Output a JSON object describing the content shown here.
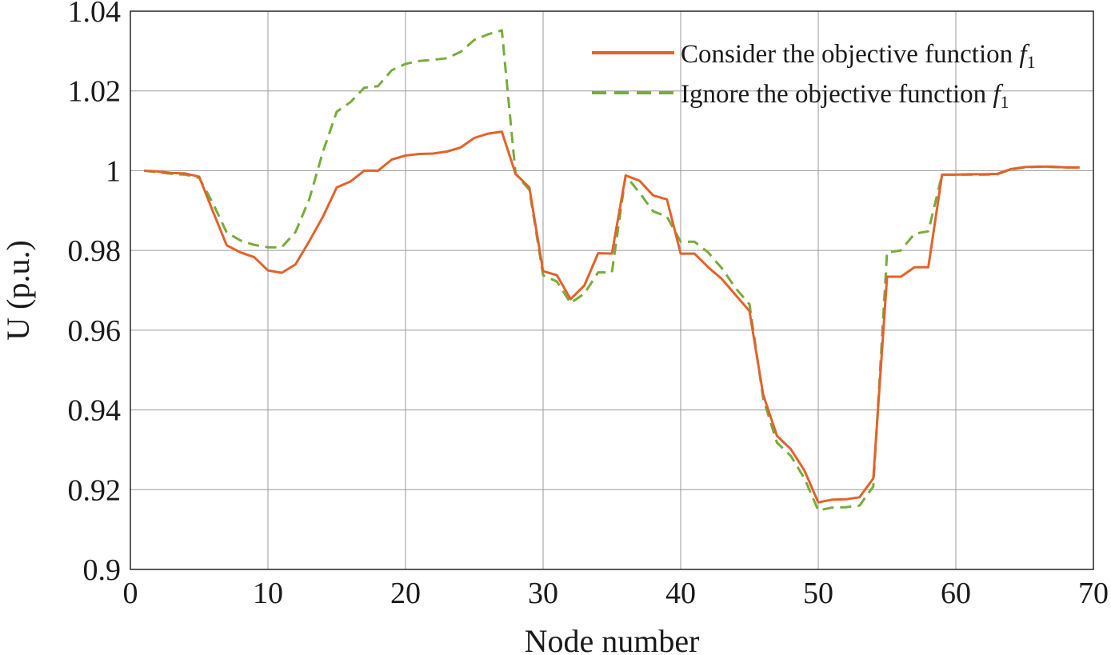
{
  "chart_data": {
    "type": "line",
    "xlabel": "Node number",
    "ylabel": "U (p.u.)",
    "xlim": [
      0,
      70
    ],
    "ylim": [
      0.9,
      1.04
    ],
    "xticks": [
      0,
      10,
      20,
      30,
      40,
      50,
      60,
      70
    ],
    "xtick_labels": [
      "0",
      "10",
      "20",
      "30",
      "40",
      "50",
      "60",
      "70"
    ],
    "yticks": [
      0.9,
      0.92,
      0.94,
      0.96,
      0.98,
      1.0,
      1.02,
      1.04
    ],
    "ytick_labels": [
      "0.9",
      "0.92",
      "0.94",
      "0.96",
      "0.98",
      "1",
      "1.02",
      "1.04"
    ],
    "grid": true,
    "legend_position": "top-right",
    "x": [
      1,
      2,
      3,
      4,
      5,
      6,
      7,
      8,
      9,
      10,
      11,
      12,
      13,
      14,
      15,
      16,
      17,
      18,
      19,
      20,
      21,
      22,
      23,
      24,
      25,
      26,
      27,
      28,
      29,
      30,
      31,
      32,
      33,
      34,
      35,
      36,
      37,
      38,
      39,
      40,
      41,
      42,
      43,
      44,
      45,
      46,
      47,
      48,
      49,
      50,
      51,
      52,
      53,
      54,
      55,
      56,
      57,
      58,
      59,
      60,
      61,
      62,
      63,
      64,
      65,
      66,
      67,
      68,
      69
    ],
    "series": [
      {
        "name": "Consider the objective function ",
        "name_symbol": "f",
        "name_subscript": "1",
        "color": "#e2632a",
        "style": "solid",
        "values": [
          1.0,
          0.9998,
          0.9994,
          0.9993,
          0.9985,
          0.9898,
          0.9813,
          0.9795,
          0.9783,
          0.975,
          0.9744,
          0.9765,
          0.9823,
          0.9885,
          0.9958,
          0.9973,
          1.0,
          1.0,
          1.0028,
          1.0038,
          1.0042,
          1.0043,
          1.0048,
          1.0058,
          1.0082,
          1.0093,
          1.0098,
          0.9992,
          0.9958,
          0.9748,
          0.9738,
          0.9678,
          0.9712,
          0.9793,
          0.9792,
          0.9988,
          0.9975,
          0.9938,
          0.9928,
          0.9792,
          0.9792,
          0.9758,
          0.9728,
          0.9688,
          0.9648,
          0.9438,
          0.9335,
          0.9302,
          0.9248,
          0.9168,
          0.9175,
          0.9176,
          0.9181,
          0.9228,
          0.9734,
          0.9734,
          0.9758,
          0.9758,
          0.999,
          0.999,
          0.9991,
          0.9991,
          0.9992,
          1.0004,
          1.0009,
          1.001,
          1.001,
          1.0008,
          1.0008
        ]
      },
      {
        "name": "Ignore the objective function ",
        "name_symbol": "f",
        "name_subscript": "1",
        "color": "#77ac3a",
        "style": "dashed",
        "values": [
          1.0,
          0.9996,
          0.9992,
          0.999,
          0.9982,
          0.9918,
          0.9845,
          0.9825,
          0.9814,
          0.9808,
          0.9808,
          0.9846,
          0.9928,
          1.0048,
          1.0148,
          1.0172,
          1.0208,
          1.0212,
          1.0252,
          1.0268,
          1.0275,
          1.0278,
          1.0282,
          1.0298,
          1.0328,
          1.0342,
          1.0352,
          0.9992,
          0.9952,
          0.9738,
          0.9722,
          0.9668,
          0.9692,
          0.9745,
          0.9745,
          0.9988,
          0.9945,
          0.9898,
          0.9885,
          0.9822,
          0.9822,
          0.9795,
          0.9755,
          0.9705,
          0.9665,
          0.9428,
          0.9318,
          0.9285,
          0.9228,
          0.9148,
          0.9155,
          0.9156,
          0.916,
          0.9208,
          0.9795,
          0.98,
          0.9842,
          0.9848,
          0.999,
          0.999,
          0.999,
          0.999,
          0.9991,
          1.0003,
          1.0008,
          1.001,
          1.0009,
          1.0008,
          1.0008
        ]
      }
    ]
  }
}
